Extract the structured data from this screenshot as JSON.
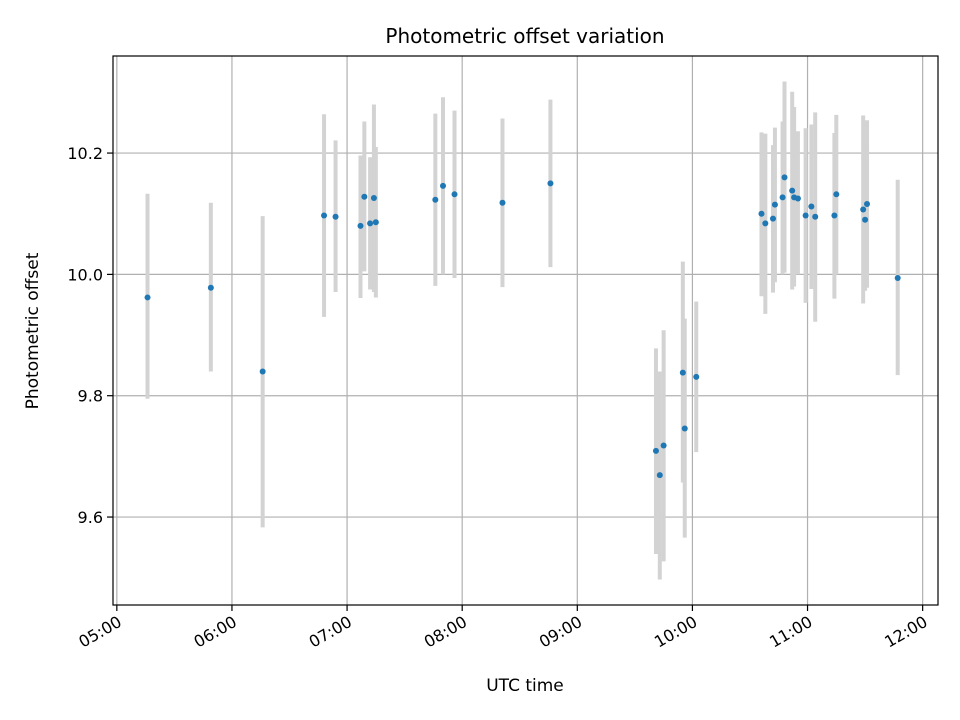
{
  "chart_data": {
    "type": "scatter",
    "title": "Photometric offset variation",
    "xlabel": "UTC time",
    "ylabel": "Photometric offset",
    "x_ticks": [
      "05:00",
      "06:00",
      "07:00",
      "08:00",
      "09:00",
      "10:00",
      "11:00",
      "12:00"
    ],
    "y_ticks": [
      "9.6",
      "9.8",
      "10.0",
      "10.2"
    ],
    "xlim": [
      "04:58",
      "12:08"
    ],
    "ylim": [
      9.455,
      10.36
    ],
    "grid": true,
    "series": [
      {
        "marker_color": "#1f77b4",
        "errorbar_color": "#d3d3d3",
        "points": [
          {
            "t": "05:16",
            "y": 9.962,
            "lo": 9.795,
            "hi": 10.133
          },
          {
            "t": "05:49",
            "y": 9.978,
            "lo": 9.84,
            "hi": 10.118
          },
          {
            "t": "06:16",
            "y": 9.84,
            "lo": 9.583,
            "hi": 10.096
          },
          {
            "t": "06:48",
            "y": 10.097,
            "lo": 9.93,
            "hi": 10.264
          },
          {
            "t": "06:54",
            "y": 10.095,
            "lo": 9.971,
            "hi": 10.221
          },
          {
            "t": "07:07",
            "y": 10.08,
            "lo": 9.961,
            "hi": 10.196
          },
          {
            "t": "07:09",
            "y": 10.128,
            "lo": 10.005,
            "hi": 10.252
          },
          {
            "t": "07:12",
            "y": 10.084,
            "lo": 9.975,
            "hi": 10.193
          },
          {
            "t": "07:14",
            "y": 10.126,
            "lo": 9.971,
            "hi": 10.28
          },
          {
            "t": "07:15",
            "y": 10.086,
            "lo": 9.962,
            "hi": 10.21
          },
          {
            "t": "07:46",
            "y": 10.123,
            "lo": 9.981,
            "hi": 10.265
          },
          {
            "t": "07:50",
            "y": 10.146,
            "lo": 10.0,
            "hi": 10.292
          },
          {
            "t": "07:56",
            "y": 10.132,
            "lo": 9.994,
            "hi": 10.27
          },
          {
            "t": "08:21",
            "y": 10.118,
            "lo": 9.979,
            "hi": 10.257
          },
          {
            "t": "08:46",
            "y": 10.15,
            "lo": 10.012,
            "hi": 10.288
          },
          {
            "t": "09:41",
            "y": 9.709,
            "lo": 9.539,
            "hi": 9.878
          },
          {
            "t": "09:43",
            "y": 9.669,
            "lo": 9.497,
            "hi": 9.84
          },
          {
            "t": "09:45",
            "y": 9.718,
            "lo": 9.527,
            "hi": 9.908
          },
          {
            "t": "09:55",
            "y": 9.838,
            "lo": 9.657,
            "hi": 10.021
          },
          {
            "t": "09:56",
            "y": 9.746,
            "lo": 9.566,
            "hi": 9.927
          },
          {
            "t": "10:02",
            "y": 9.831,
            "lo": 9.707,
            "hi": 9.955
          },
          {
            "t": "10:36",
            "y": 10.1,
            "lo": 9.964,
            "hi": 10.234
          },
          {
            "t": "10:38",
            "y": 10.084,
            "lo": 9.935,
            "hi": 10.232
          },
          {
            "t": "10:42",
            "y": 10.092,
            "lo": 9.97,
            "hi": 10.213
          },
          {
            "t": "10:43",
            "y": 10.115,
            "lo": 9.987,
            "hi": 10.242
          },
          {
            "t": "10:47",
            "y": 10.127,
            "lo": 10.0,
            "hi": 10.252
          },
          {
            "t": "10:48",
            "y": 10.16,
            "lo": 10.003,
            "hi": 10.318
          },
          {
            "t": "10:52",
            "y": 10.138,
            "lo": 9.975,
            "hi": 10.301
          },
          {
            "t": "10:53",
            "y": 10.127,
            "lo": 9.98,
            "hi": 10.276
          },
          {
            "t": "10:55",
            "y": 10.125,
            "lo": 10.0,
            "hi": 10.236
          },
          {
            "t": "10:59",
            "y": 10.097,
            "lo": 9.953,
            "hi": 10.241
          },
          {
            "t": "11:02",
            "y": 10.112,
            "lo": 9.976,
            "hi": 10.247
          },
          {
            "t": "11:04",
            "y": 10.095,
            "lo": 9.922,
            "hi": 10.267
          },
          {
            "t": "11:14",
            "y": 10.097,
            "lo": 9.96,
            "hi": 10.233
          },
          {
            "t": "11:15",
            "y": 10.132,
            "lo": 10.0,
            "hi": 10.263
          },
          {
            "t": "11:29",
            "y": 10.107,
            "lo": 9.952,
            "hi": 10.262
          },
          {
            "t": "11:30",
            "y": 10.09,
            "lo": 9.973,
            "hi": 10.207
          },
          {
            "t": "11:31",
            "y": 10.116,
            "lo": 9.978,
            "hi": 10.254
          },
          {
            "t": "11:47",
            "y": 9.994,
            "lo": 9.834,
            "hi": 10.156
          }
        ]
      }
    ]
  }
}
